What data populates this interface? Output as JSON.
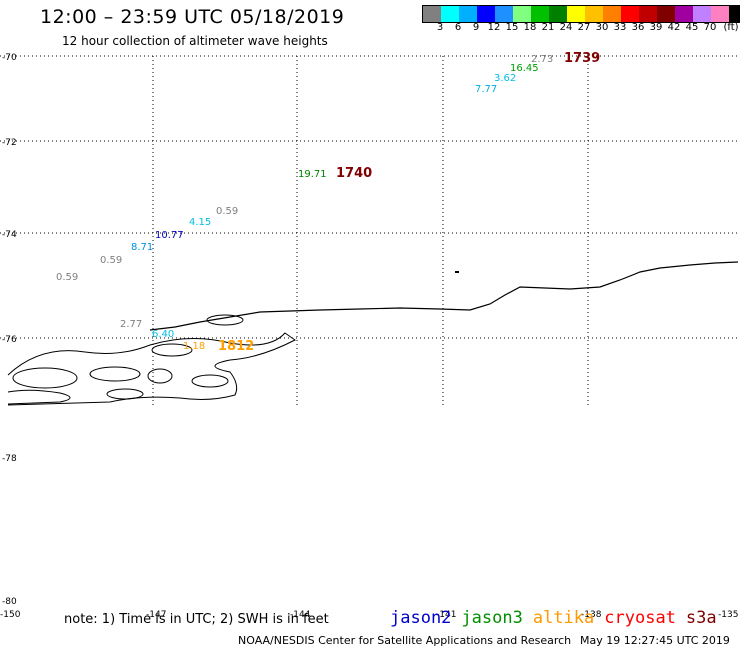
{
  "header": {
    "title": "12:00 – 23:59 UTC 05/18/2019",
    "subtitle": "12 hour collection of altimeter wave heights"
  },
  "scale": {
    "colors": [
      "#808080",
      "#00ffff",
      "#00b0ff",
      "#0000ff",
      "#1e90ff",
      "#80ff80",
      "#00c000",
      "#008000",
      "#ffff00",
      "#ffc000",
      "#ff8000",
      "#ff0000",
      "#c00000",
      "#800000",
      "#a000a0",
      "#c080ff",
      "#ff80c0",
      "#000000"
    ],
    "labels": [
      "3",
      "6",
      "9",
      "12",
      "15",
      "18",
      "21",
      "24",
      "27",
      "30",
      "33",
      "36",
      "39",
      "42",
      "45",
      "70"
    ],
    "unit": "(ft)"
  },
  "axes": {
    "lat_labels": [
      "-70",
      "-72",
      "-74",
      "-76",
      "-78",
      "-80"
    ],
    "lon_labels": [
      "-150",
      "-147",
      "-144",
      "-141",
      "-138",
      "-135"
    ]
  },
  "observations": [
    {
      "text": "2.73",
      "color": "#808080"
    },
    {
      "text": "1739",
      "color": "#800000"
    },
    {
      "text": "16.45",
      "color": "#00a000"
    },
    {
      "text": "3.62",
      "color": "#00c0e0"
    },
    {
      "text": "7.77",
      "color": "#00b0e0"
    },
    {
      "text": "19.71",
      "color": "#008000"
    },
    {
      "text": "1740",
      "color": "#800000"
    },
    {
      "text": "0.59",
      "color": "#808080"
    },
    {
      "text": "4.15",
      "color": "#00c0e0"
    },
    {
      "text": "10.77",
      "color": "#0000c0"
    },
    {
      "text": "8.71",
      "color": "#0090e0"
    },
    {
      "text": "0.59",
      "color": "#808080"
    },
    {
      "text": "0.59",
      "color": "#808080"
    },
    {
      "text": "2.77",
      "color": "#808080"
    },
    {
      "text": "6.40",
      "color": "#00c0e0"
    },
    {
      "text": "1.18",
      "color": "#ffa000"
    },
    {
      "text": "1812",
      "color": "#ffa000"
    }
  ],
  "footer": {
    "note": "note:  1) Time is in UTC;  2) SWH is in feet",
    "satellites": [
      {
        "name": "jason2",
        "color": "#0000cc"
      },
      {
        "name": "jason3",
        "color": "#009000"
      },
      {
        "name": "altika",
        "color": "#ff9900"
      },
      {
        "name": "cryosat",
        "color": "#ff0000"
      },
      {
        "name": "s3a",
        "color": "#800000"
      }
    ],
    "credit": "NOAA/NESDIS Center for Satellite Applications and Research",
    "timestamp": "May 19 12:27:45 UTC 2019"
  }
}
